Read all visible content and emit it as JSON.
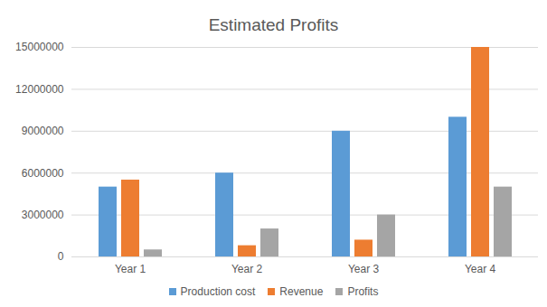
{
  "chart_data": {
    "type": "bar",
    "title": "Estimated Profits",
    "categories": [
      "Year 1",
      "Year 2",
      "Year 3",
      "Year 4"
    ],
    "series": [
      {
        "name": "Production cost",
        "color": "#5b9bd5",
        "values": [
          5000000,
          6000000,
          9000000,
          10000000
        ]
      },
      {
        "name": "Revenue",
        "color": "#ed7d31",
        "values": [
          5500000,
          800000,
          1200000,
          15000000
        ]
      },
      {
        "name": "Profits",
        "color": "#a5a5a5",
        "values": [
          500000,
          2000000,
          3000000,
          5000000
        ]
      }
    ],
    "ylim": [
      0,
      15000000
    ],
    "yticks": [
      0,
      3000000,
      6000000,
      9000000,
      12000000,
      15000000
    ],
    "grid": true,
    "legend": "bottom"
  }
}
